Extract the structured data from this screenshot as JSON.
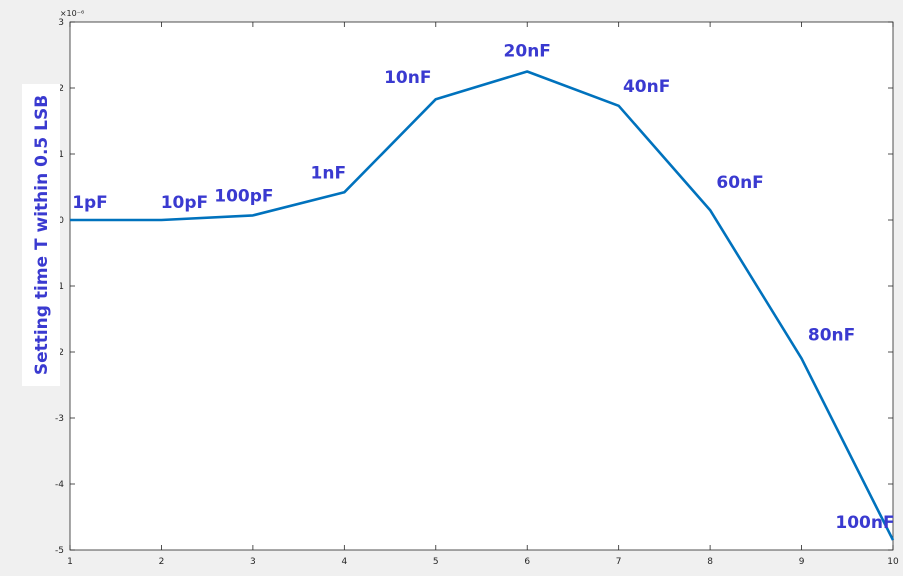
{
  "chart_data": {
    "type": "line",
    "x": [
      1,
      2,
      3,
      4,
      5,
      6,
      7,
      8,
      9,
      10
    ],
    "series": [
      {
        "values": [
          0.0,
          0.0,
          0.07,
          0.42,
          1.83,
          2.25,
          1.73,
          0.15,
          -2.1,
          -4.85
        ]
      }
    ],
    "point_labels": [
      "1pF",
      "10pF",
      "100pF",
      "1nF",
      "10nF",
      "20nF",
      "40nF",
      "60nF",
      "80nF",
      "100nF"
    ],
    "ylabel": "Setting time T within 0.5 LSB",
    "y_exponent_label": "×10⁻⁶",
    "xlim": [
      1,
      10
    ],
    "ylim": [
      -5,
      3
    ],
    "x_ticks": [
      "1",
      "2",
      "3",
      "4",
      "5",
      "6",
      "7",
      "8",
      "9",
      "10"
    ],
    "y_ticks": [
      "-5",
      "-4",
      "-3",
      "-2",
      "-1",
      "0",
      "1",
      "2",
      "3"
    ],
    "grid": false,
    "line_color": "#0072bd",
    "label_color": "#3a3ad0",
    "axes_color": "#262626",
    "background": "#ffffff"
  }
}
